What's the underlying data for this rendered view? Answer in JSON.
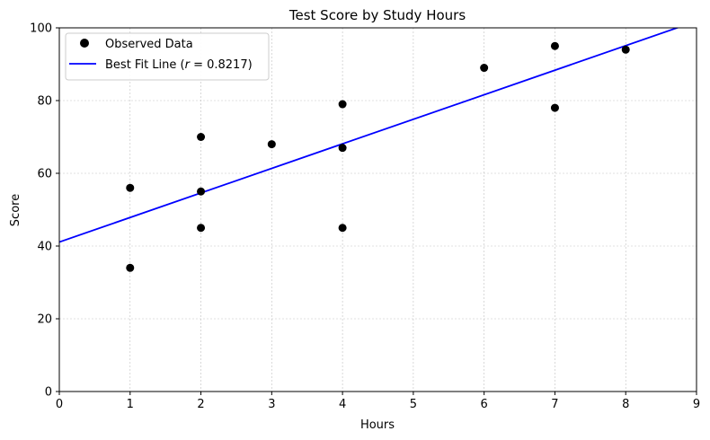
{
  "chart_data": {
    "type": "scatter",
    "title": "Test Score by Study Hours",
    "xlabel": "Hours",
    "ylabel": "Score",
    "xlim": [
      0,
      9
    ],
    "ylim": [
      0,
      100
    ],
    "xticks": [
      0,
      1,
      2,
      3,
      4,
      5,
      6,
      7,
      8,
      9
    ],
    "yticks": [
      0,
      20,
      40,
      60,
      80,
      100
    ],
    "grid": true,
    "legend_position": "top-left",
    "series": [
      {
        "name": "Observed Data",
        "kind": "scatter",
        "color": "#000000",
        "points": [
          {
            "x": 1,
            "y": 56
          },
          {
            "x": 1,
            "y": 34
          },
          {
            "x": 2,
            "y": 70
          },
          {
            "x": 2,
            "y": 55
          },
          {
            "x": 2,
            "y": 45
          },
          {
            "x": 3,
            "y": 68
          },
          {
            "x": 4,
            "y": 79
          },
          {
            "x": 4,
            "y": 67
          },
          {
            "x": 4,
            "y": 45
          },
          {
            "x": 6,
            "y": 89
          },
          {
            "x": 7,
            "y": 95
          },
          {
            "x": 7,
            "y": 78
          },
          {
            "x": 8,
            "y": 94
          }
        ]
      },
      {
        "name_prefix": "Best Fit Line (",
        "name_italic": "r",
        "name_suffix": " = 0.8217)",
        "kind": "line",
        "color": "#0000ff",
        "slope": 6.75,
        "intercept": 41.1
      }
    ]
  }
}
